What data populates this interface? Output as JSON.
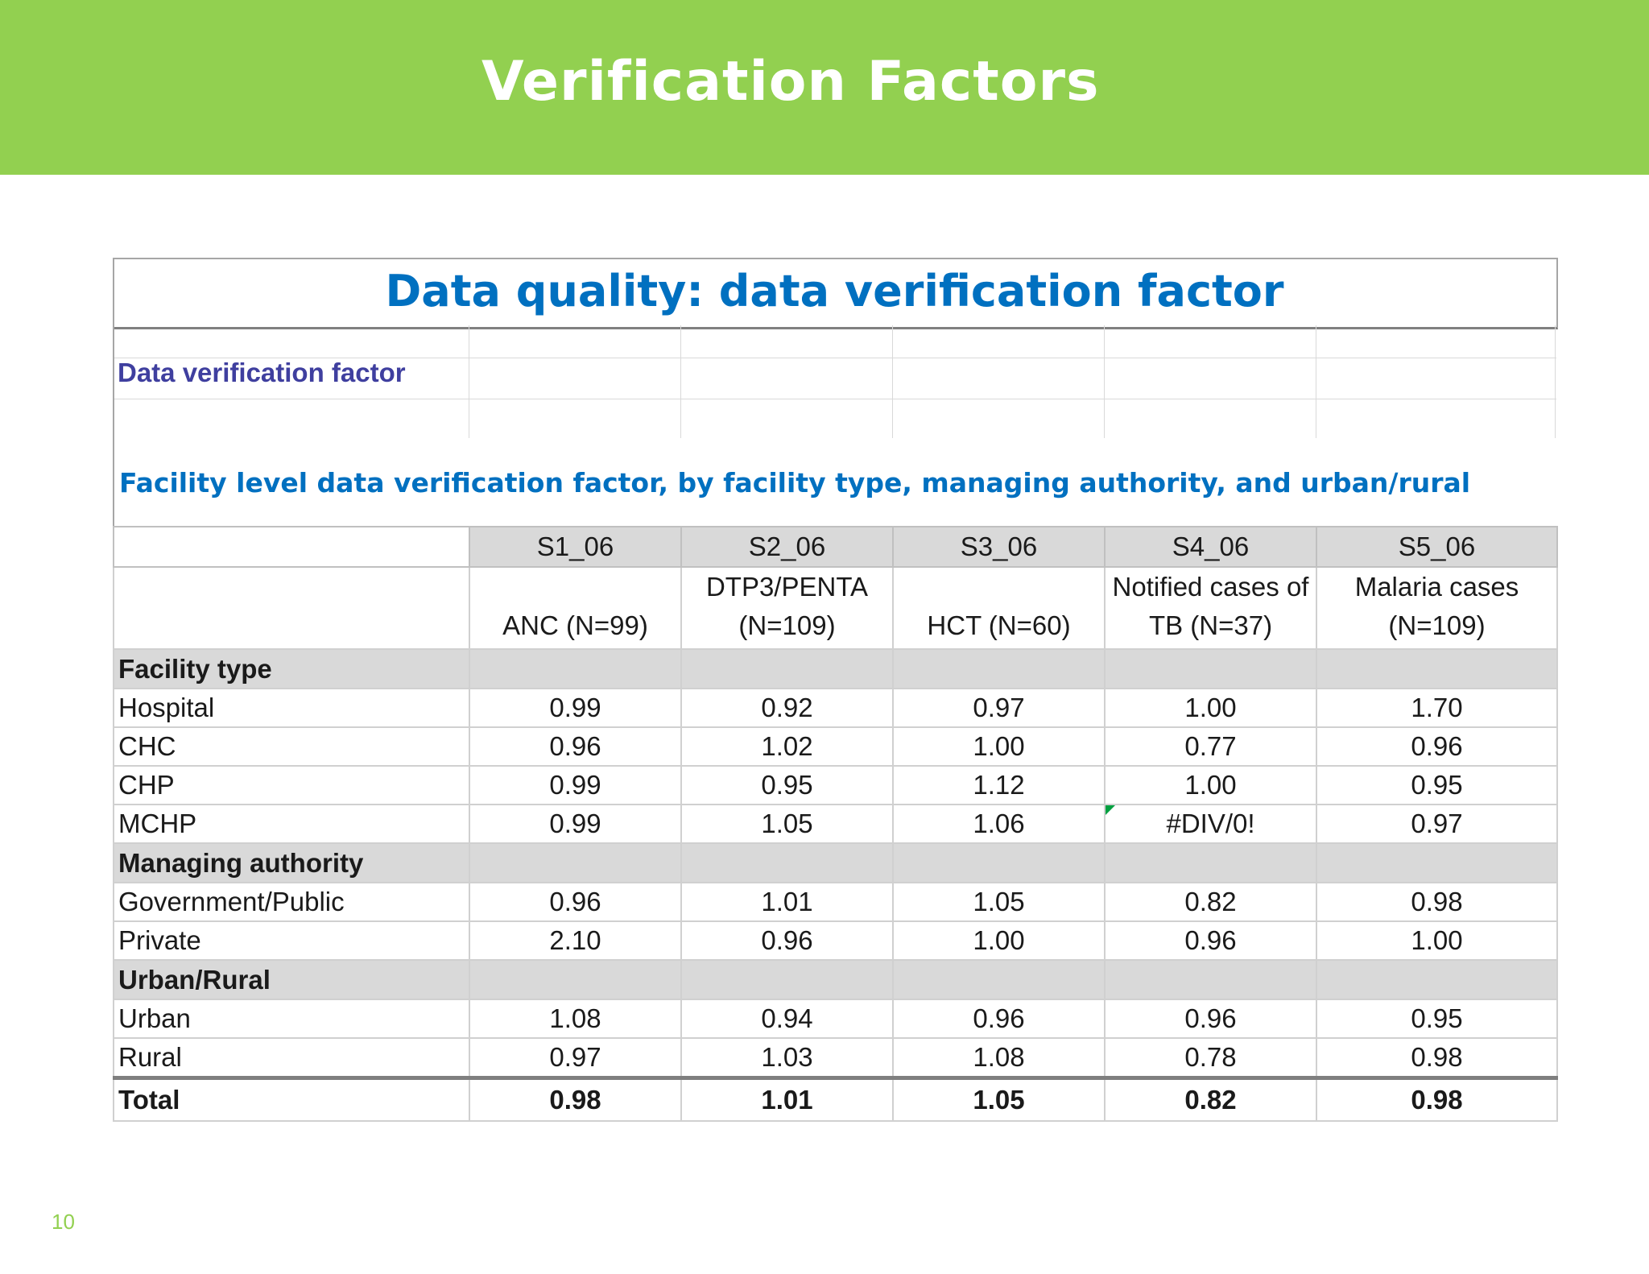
{
  "slide": {
    "title": "Verification Factors",
    "page_number": "10"
  },
  "sheet": {
    "title": "Data quality: data verification factor",
    "section_label": "Data verification factor",
    "subtitle": "Facility level data verification factor, by facility type, managing authority, and urban/rural"
  },
  "table": {
    "codes": [
      "S1_06",
      "S2_06",
      "S3_06",
      "S4_06",
      "S5_06"
    ],
    "indicators": [
      [
        "",
        "ANC (N=99)"
      ],
      [
        "DTP3/PENTA",
        "(N=109)"
      ],
      [
        "",
        "HCT (N=60)"
      ],
      [
        "Notified cases of",
        "TB (N=37)"
      ],
      [
        "Malaria cases",
        "(N=109)"
      ]
    ],
    "sections": [
      {
        "label": "Facility type",
        "rows": [
          {
            "label": "Hospital",
            "values": [
              "0.99",
              "0.92",
              "0.97",
              "1.00",
              "1.70"
            ]
          },
          {
            "label": "CHC",
            "values": [
              "0.96",
              "1.02",
              "1.00",
              "0.77",
              "0.96"
            ]
          },
          {
            "label": "CHP",
            "values": [
              "0.99",
              "0.95",
              "1.12",
              "1.00",
              "0.95"
            ]
          },
          {
            "label": "MCHP",
            "values": [
              "0.99",
              "1.05",
              "1.06",
              "#DIV/0!",
              "0.97"
            ]
          }
        ]
      },
      {
        "label": "Managing authority",
        "rows": [
          {
            "label": "Government/Public",
            "values": [
              "0.96",
              "1.01",
              "1.05",
              "0.82",
              "0.98"
            ]
          },
          {
            "label": "Private",
            "values": [
              "2.10",
              "0.96",
              "1.00",
              "0.96",
              "1.00"
            ]
          }
        ]
      },
      {
        "label": "Urban/Rural",
        "rows": [
          {
            "label": "Urban",
            "values": [
              "1.08",
              "0.94",
              "0.96",
              "0.96",
              "0.95"
            ]
          },
          {
            "label": "Rural",
            "values": [
              "0.97",
              "1.03",
              "1.08",
              "0.78",
              "0.98"
            ]
          }
        ]
      }
    ],
    "total": {
      "label": "Total",
      "values": [
        "0.98",
        "1.01",
        "1.05",
        "0.82",
        "0.98"
      ]
    }
  },
  "colors": {
    "banner": "#92d050",
    "title_blue": "#0070c0",
    "label_purple": "#3f3f9f",
    "header_gray": "#d9d9d9"
  }
}
